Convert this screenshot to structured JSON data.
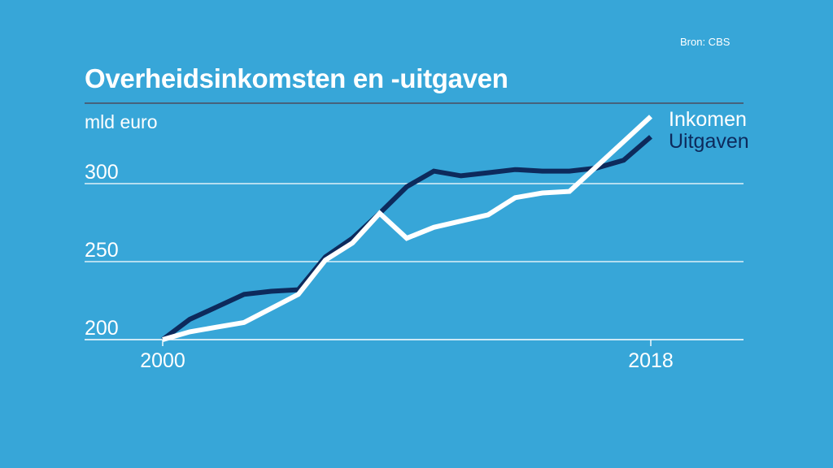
{
  "header": {
    "source": "Bron: CBS",
    "title": "Overheidsinkomsten en -uitgaven",
    "unit": "mld euro"
  },
  "colors": {
    "background": "#37a6d8",
    "inkomen": "#ffffff",
    "uitgaven": "#0d2a5c",
    "gridline": "#ffffff",
    "title_rule": "#46627c"
  },
  "chart_data": {
    "type": "line",
    "title": "Overheidsinkomsten en -uitgaven",
    "ylabel": "mld euro",
    "xlabel": "",
    "x": [
      2000,
      2001,
      2002,
      2003,
      2004,
      2005,
      2006,
      2007,
      2008,
      2009,
      2010,
      2011,
      2012,
      2013,
      2014,
      2015,
      2016,
      2017,
      2018
    ],
    "series": [
      {
        "name": "Inkomen",
        "color": "#ffffff",
        "values": [
          200,
          205,
          208,
          211,
          220,
          229,
          251,
          262,
          281,
          265,
          272,
          276,
          280,
          291,
          294,
          295,
          311,
          327,
          343
        ]
      },
      {
        "name": "Uitgaven",
        "color": "#0d2a5c",
        "values": [
          200,
          213,
          221,
          229,
          231,
          232,
          253,
          265,
          281,
          298,
          308,
          305,
          307,
          309,
          308,
          308,
          310,
          315,
          330
        ]
      }
    ],
    "xticks": [
      2000,
      2018
    ],
    "yticks": [
      200,
      250,
      300
    ],
    "xlim": [
      1999.4,
      2021.4
    ],
    "ylim": [
      200,
      350
    ],
    "grid": "horizontal",
    "legend": "right"
  }
}
